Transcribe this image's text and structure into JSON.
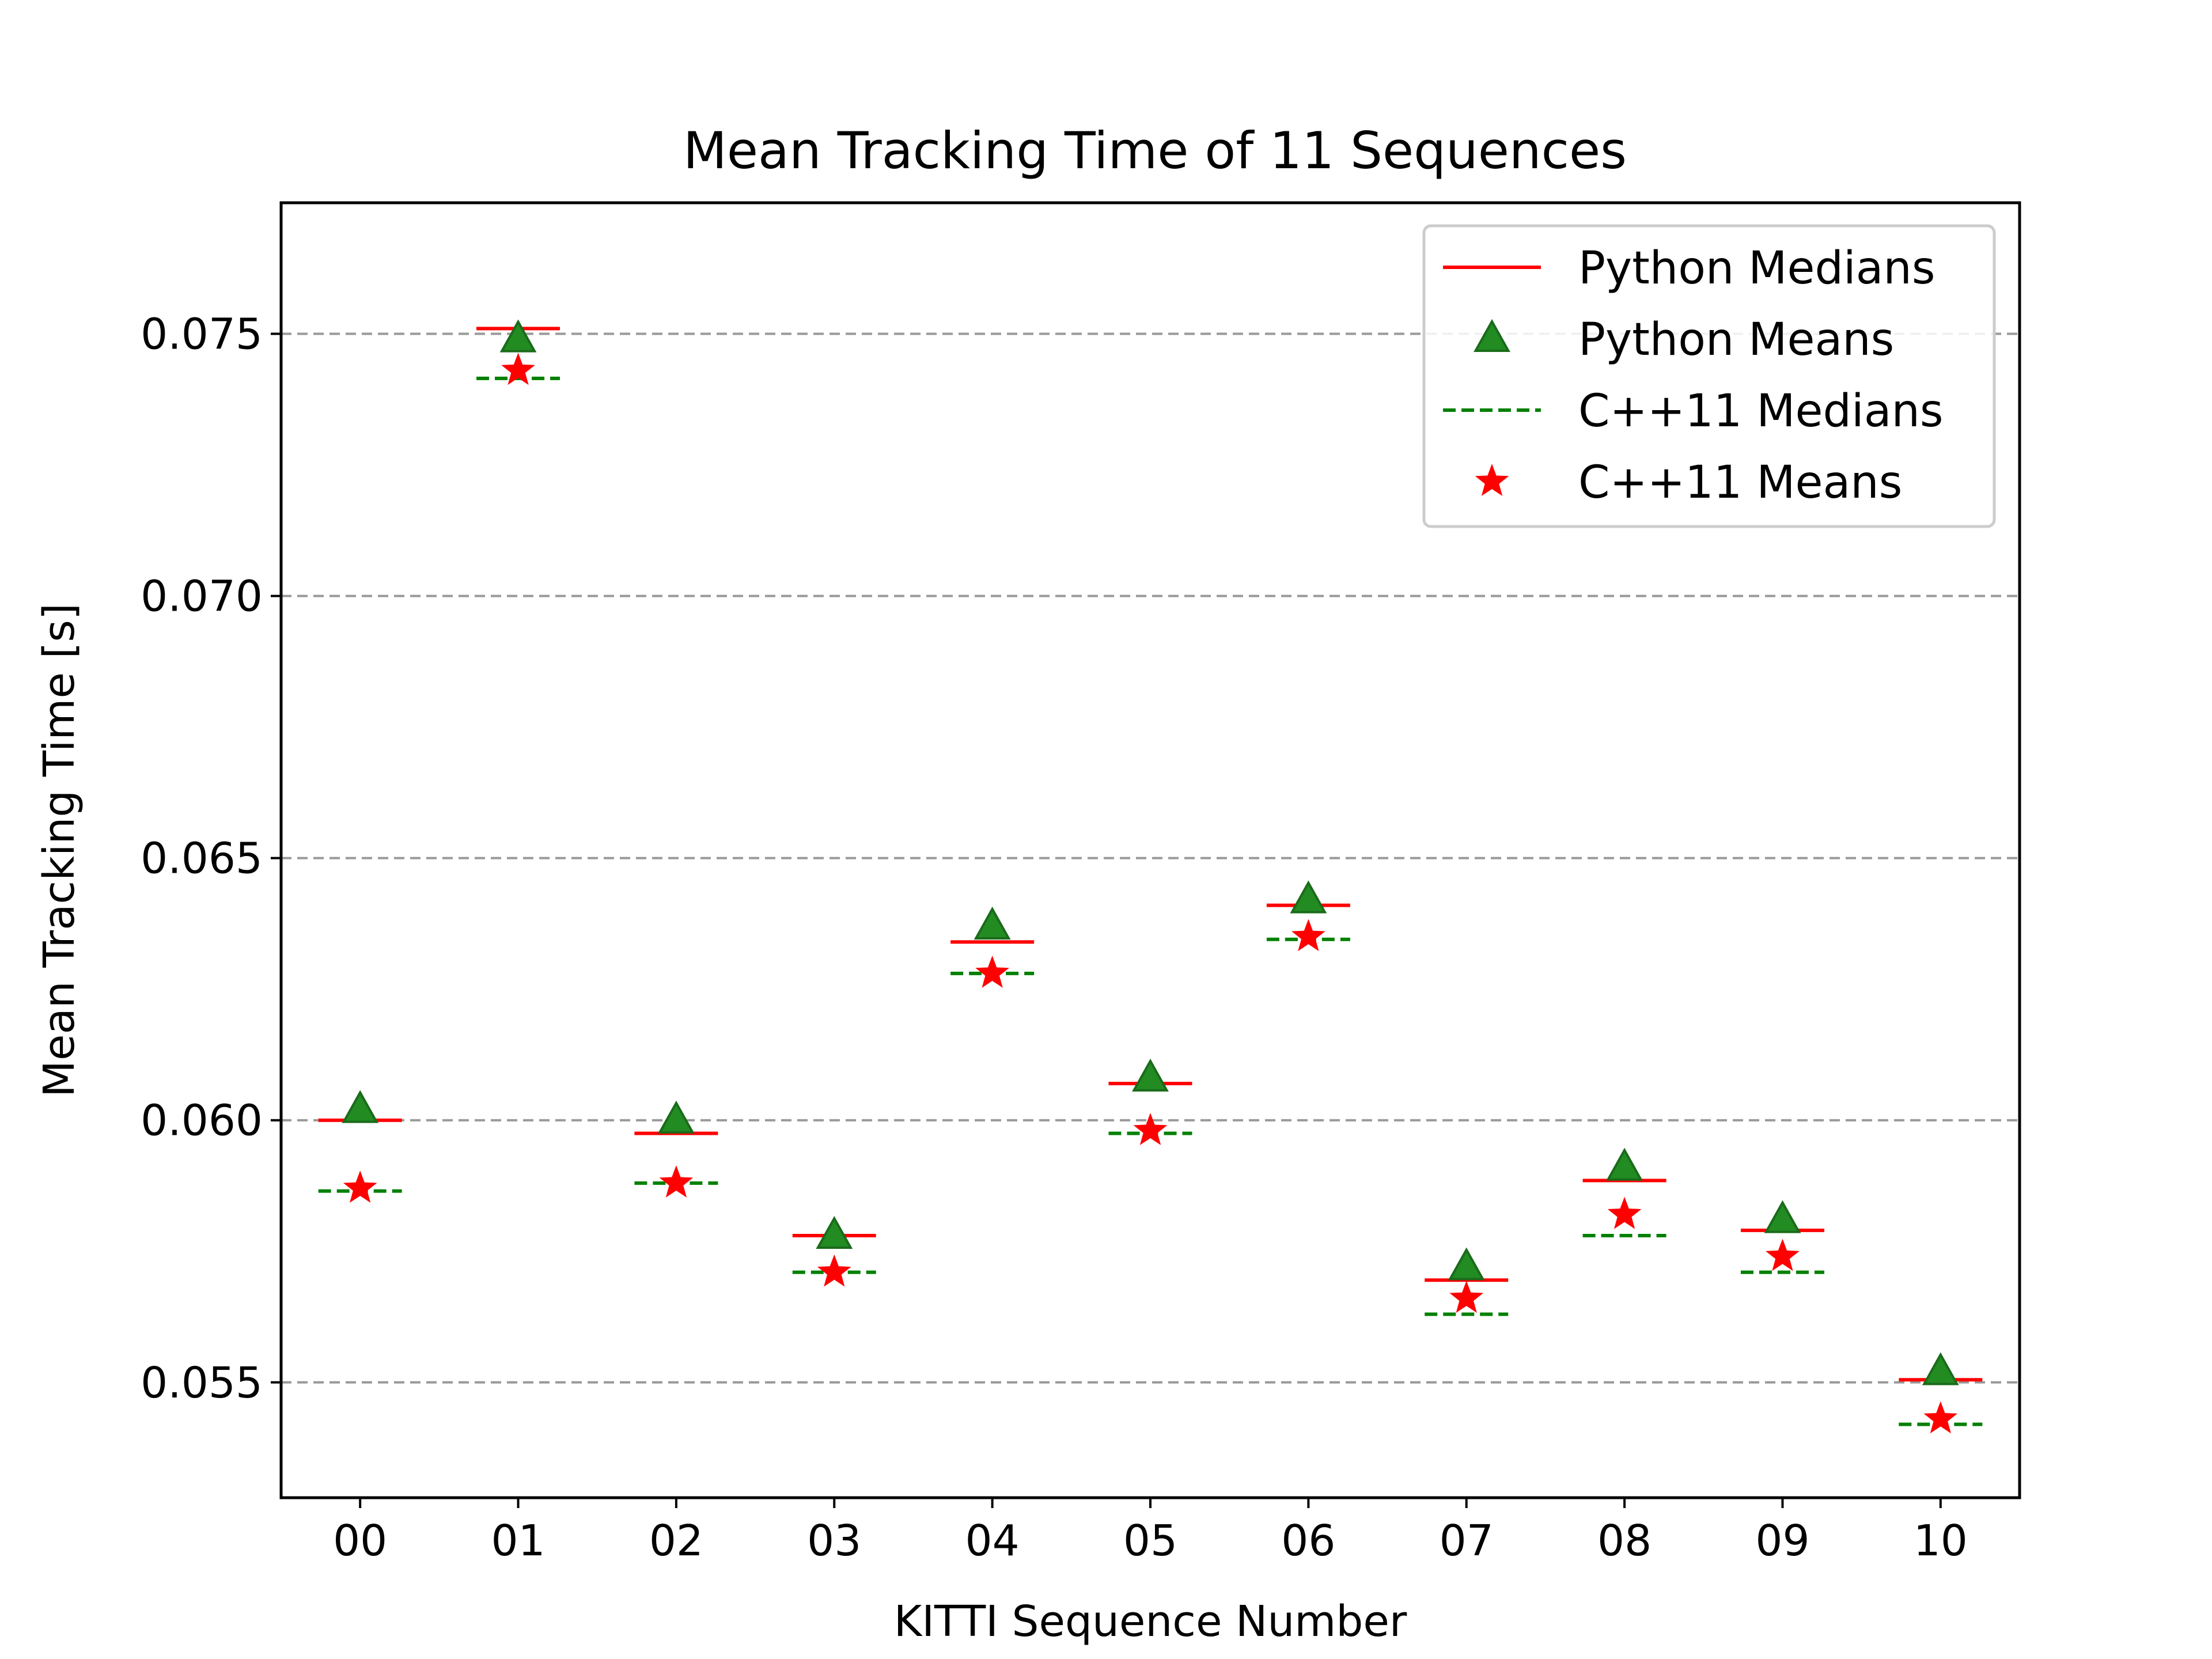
{
  "chart_data": {
    "type": "scatter",
    "title": "Mean Tracking Time of 11 Sequences",
    "xlabel": "KITTI Sequence Number",
    "ylabel": "Mean Tracking Time [s]",
    "categories": [
      "00",
      "01",
      "02",
      "03",
      "04",
      "05",
      "06",
      "07",
      "08",
      "09",
      "10"
    ],
    "ylim": [
      0.0528,
      0.0775
    ],
    "yticks": [
      0.055,
      0.06,
      0.065,
      0.07,
      0.075
    ],
    "ytick_labels": [
      "0.055",
      "0.060",
      "0.065",
      "0.070",
      "0.075"
    ],
    "grid": "horizontal dashed",
    "legend_position": "top-right",
    "series": [
      {
        "name": "Python Medians",
        "marker": "solid-line",
        "color": "#ff0000",
        "values": [
          0.06,
          0.0751,
          0.05975,
          0.0578,
          0.0634,
          0.0607,
          0.0641,
          0.05695,
          0.05885,
          0.0579,
          0.05505
        ]
      },
      {
        "name": "Python Means",
        "marker": "triangle",
        "color": "#228b22",
        "values": [
          0.0602,
          0.0749,
          0.06,
          0.0578,
          0.0637,
          0.0608,
          0.0642,
          0.0572,
          0.0591,
          0.0581,
          0.0552
        ]
      },
      {
        "name": "C++11 Medians",
        "marker": "dashed-line",
        "color": "#008000",
        "values": [
          0.05865,
          0.07415,
          0.0588,
          0.0571,
          0.0628,
          0.05975,
          0.06345,
          0.0563,
          0.0578,
          0.0571,
          0.0542
        ]
      },
      {
        "name": "C++11 Means",
        "marker": "star",
        "color": "#ff0000",
        "values": [
          0.0587,
          0.0743,
          0.0588,
          0.0571,
          0.0628,
          0.0598,
          0.0635,
          0.0566,
          0.0582,
          0.0574,
          0.0543
        ]
      }
    ]
  }
}
